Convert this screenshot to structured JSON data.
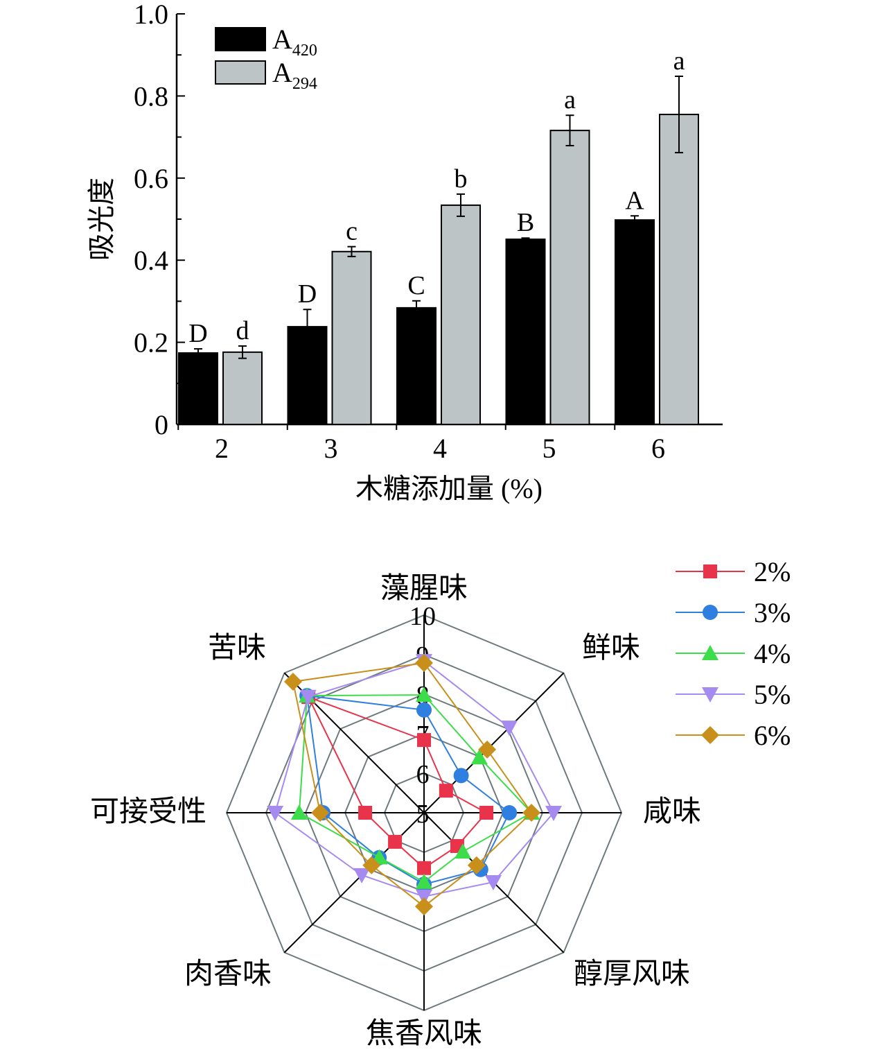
{
  "chart_data": [
    {
      "type": "bar",
      "title": "",
      "xlabel": "木糖添加量 (%)",
      "ylabel": "吸光度",
      "ylim": [
        0,
        1.0
      ],
      "yticks": [
        "0",
        "0.2",
        "0.4",
        "0.6",
        "0.8",
        "1.0"
      ],
      "yticks_values": [
        0,
        0.2,
        0.4,
        0.6,
        0.8,
        1.0
      ],
      "categories": [
        "2",
        "3",
        "4",
        "5",
        "6"
      ],
      "legend_position": "top-left",
      "series": [
        {
          "name": "A",
          "subscript": "420",
          "color": "#000000",
          "values": [
            0.174,
            0.238,
            0.284,
            0.451,
            0.498
          ],
          "errors": [
            0.01,
            0.042,
            0.017,
            0.003,
            0.01
          ],
          "letters": [
            "D",
            "D",
            "C",
            "B",
            "A"
          ]
        },
        {
          "name": "A",
          "subscript": "294",
          "color": "#bcc4c6",
          "values": [
            0.176,
            0.421,
            0.534,
            0.716,
            0.755
          ],
          "errors": [
            0.015,
            0.012,
            0.027,
            0.037,
            0.093
          ],
          "letters": [
            "d",
            "c",
            "b",
            "a",
            "a"
          ]
        }
      ]
    },
    {
      "type": "radar",
      "axes": [
        "藻腥味",
        "鲜味",
        "咸味",
        "醇厚风味",
        "焦香风味",
        "肉香味",
        "可接受性",
        "苦味"
      ],
      "rlim": [
        5,
        10
      ],
      "rticks": [
        "5",
        "6",
        "7",
        "8",
        "9",
        "10"
      ],
      "legend_position": "top-right",
      "series": [
        {
          "name": "2%",
          "color": "#e8334a",
          "marker": "square",
          "values": [
            6.84,
            5.79,
            6.58,
            6.19,
            6.4,
            6.04,
            6.49,
            9.14
          ]
        },
        {
          "name": "3%",
          "color": "#2f7fe0",
          "marker": "circle",
          "values": [
            7.6,
            6.33,
            7.16,
            7.03,
            6.81,
            6.61,
            7.56,
            9.19
          ]
        },
        {
          "name": "4%",
          "color": "#3ddc4a",
          "marker": "triangle-up",
          "values": [
            7.98,
            6.98,
            7.72,
            6.39,
            6.75,
            6.6,
            8.16,
            9.19
          ]
        },
        {
          "name": "5%",
          "color": "#a58af0",
          "marker": "triangle-down",
          "values": [
            8.84,
            8.05,
            8.28,
            7.48,
            7.12,
            7.23,
            8.77,
            9.15
          ]
        },
        {
          "name": "6%",
          "color": "#c8901a",
          "marker": "diamond",
          "values": [
            8.79,
            7.26,
            7.72,
            6.88,
            7.37,
            6.88,
            7.63,
            9.69
          ]
        }
      ]
    }
  ]
}
